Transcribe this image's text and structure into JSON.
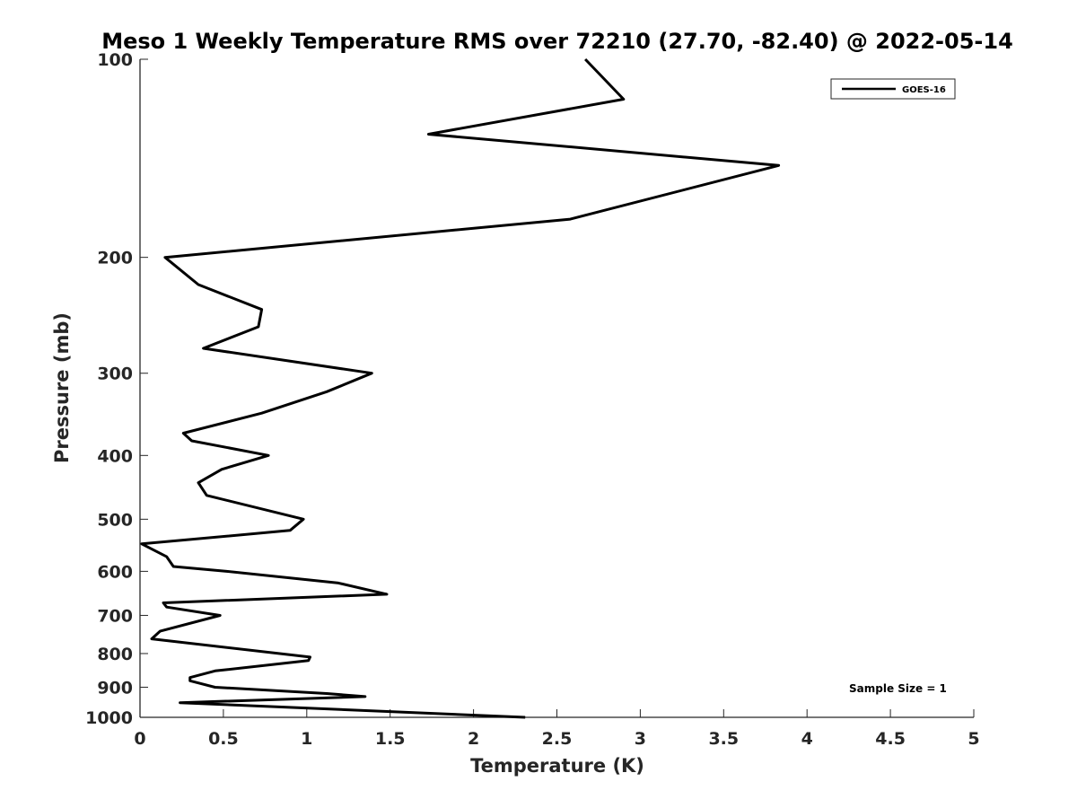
{
  "chart_data": {
    "type": "line",
    "title": "Meso 1 Weekly Temperature RMS over 72210 (27.70, -82.40) @ 2022-05-14",
    "xlabel": "Temperature (K)",
    "ylabel": "Pressure (mb)",
    "xlim": [
      0,
      5
    ],
    "ylim": [
      100,
      1000
    ],
    "y_scale": "log",
    "y_direction": "reversed",
    "grid": false,
    "legend_position": "top-right",
    "x_ticks": [
      "0",
      "0.5",
      "1",
      "1.5",
      "2",
      "2.5",
      "3",
      "3.5",
      "4",
      "4.5",
      "5"
    ],
    "y_ticks": [
      "100",
      "200",
      "300",
      "400",
      "500",
      "600",
      "700",
      "800",
      "900",
      "1000"
    ],
    "series": [
      {
        "name": "GOES-16",
        "color": "#000000",
        "points": [
          [
            2.67,
            100
          ],
          [
            2.9,
            115
          ],
          [
            1.73,
            130
          ],
          [
            3.83,
            145
          ],
          [
            2.58,
            175
          ],
          [
            0.15,
            200
          ],
          [
            0.35,
            220
          ],
          [
            0.73,
            240
          ],
          [
            0.71,
            255
          ],
          [
            0.38,
            275
          ],
          [
            1.39,
            300
          ],
          [
            1.12,
            320
          ],
          [
            0.73,
            345
          ],
          [
            0.26,
            370
          ],
          [
            0.31,
            380
          ],
          [
            0.77,
            400
          ],
          [
            0.49,
            420
          ],
          [
            0.35,
            440
          ],
          [
            0.4,
            460
          ],
          [
            0.98,
            500
          ],
          [
            0.9,
            520
          ],
          [
            0.01,
            545
          ],
          [
            0.16,
            570
          ],
          [
            0.2,
            590
          ],
          [
            0.52,
            600
          ],
          [
            1.19,
            625
          ],
          [
            1.48,
            650
          ],
          [
            0.14,
            670
          ],
          [
            0.16,
            680
          ],
          [
            0.48,
            700
          ],
          [
            0.12,
            740
          ],
          [
            0.07,
            760
          ],
          [
            1.02,
            810
          ],
          [
            1.01,
            820
          ],
          [
            0.45,
            850
          ],
          [
            0.3,
            870
          ],
          [
            0.3,
            880
          ],
          [
            0.45,
            900
          ],
          [
            1.12,
            920
          ],
          [
            1.35,
            930
          ],
          [
            0.24,
            950
          ],
          [
            2.31,
            1000
          ]
        ]
      }
    ],
    "annotations": [
      "Sample Size = 1"
    ]
  }
}
